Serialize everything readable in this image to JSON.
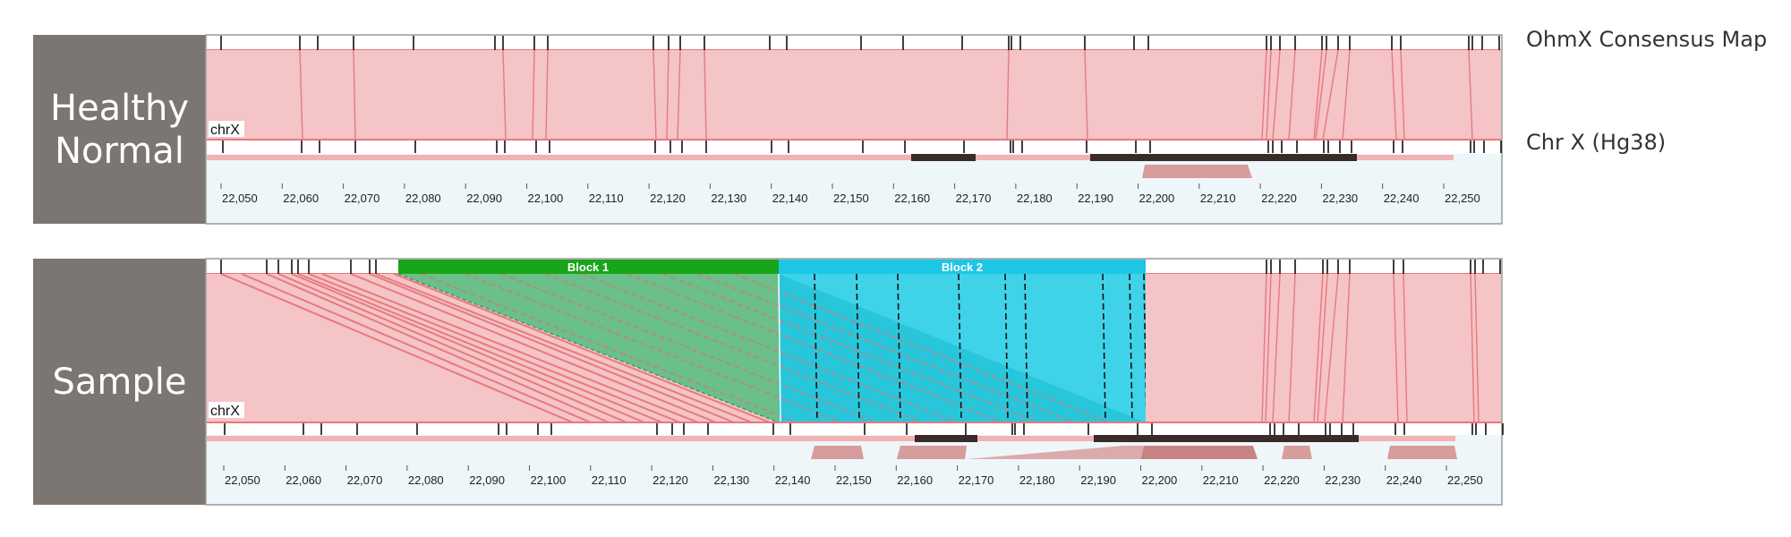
{
  "panels": [
    {
      "id": "healthy",
      "label_line1": "Healthy",
      "label_line2": "Normal",
      "chrom": "chrX",
      "ticks": [
        "22,050",
        "22,060",
        "22,070",
        "22,080",
        "22,090",
        "22,100",
        "22,110",
        "22,120",
        "22,130",
        "22,140",
        "22,150",
        "22,160",
        "22,170",
        "22,180",
        "22,190",
        "22,200",
        "22,210",
        "22,220",
        "22,230",
        "22,240",
        "22,250"
      ]
    },
    {
      "id": "sample",
      "label_line1": "Sample",
      "chrom": "chrX",
      "block1": "Block 1",
      "block2": "Block 2",
      "ticks": [
        "22,050",
        "22,060",
        "22,070",
        "22,080",
        "22,090",
        "22,100",
        "22,110",
        "22,120",
        "22,130",
        "22,140",
        "22,150",
        "22,160",
        "22,170",
        "22,180",
        "22,190",
        "22,200",
        "22,210",
        "22,220",
        "22,230",
        "22,240",
        "22,250"
      ]
    }
  ],
  "legend": {
    "consensus": "OhmX Consensus Map",
    "reference": "Chr X (Hg38)"
  },
  "colors": {
    "align_fill": "#f4c4c6",
    "align_line": "#e8797d",
    "block1": "#19a519",
    "block1_fill": "#6bbf8a",
    "block2": "#1ec6e6",
    "block2_fill": "#3fd3ea",
    "side": "#7b7672",
    "ref_bar": "#3a2a2a",
    "seg": "#d79c9c"
  }
}
